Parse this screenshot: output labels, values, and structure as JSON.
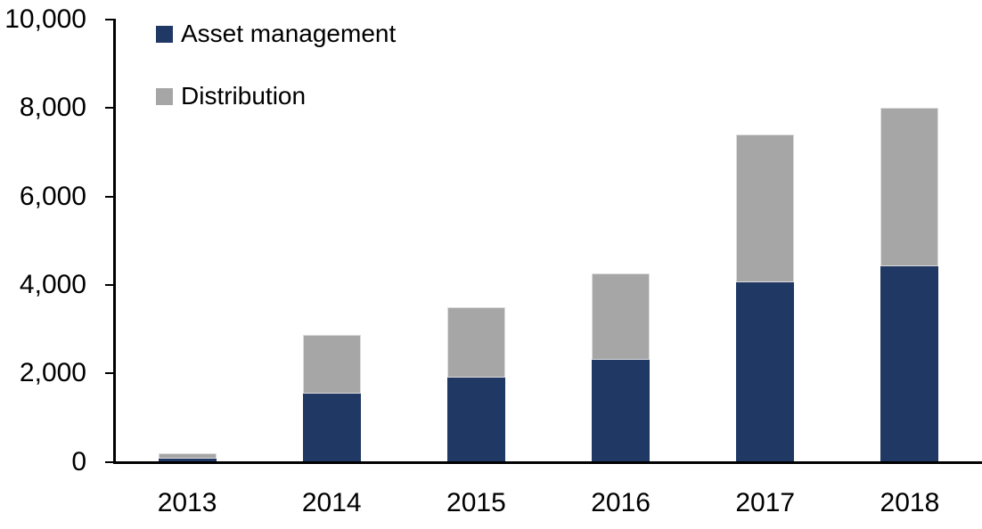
{
  "chart_data": {
    "type": "bar",
    "stacked": true,
    "title": "",
    "xlabel": "",
    "ylabel": "",
    "categories": [
      "2013",
      "2014",
      "2015",
      "2016",
      "2017",
      "2018"
    ],
    "series": [
      {
        "name": "Asset management",
        "color": "#203864",
        "values": [
          80,
          1550,
          1900,
          2300,
          4050,
          4430
        ]
      },
      {
        "name": "Distribution",
        "color": "#a6a6a6",
        "values": [
          120,
          1320,
          1600,
          1950,
          3350,
          3570
        ]
      }
    ],
    "totals": [
      200,
      2870,
      3500,
      4250,
      7400,
      8000
    ],
    "ylim": [
      0,
      10000
    ],
    "yticks": [
      0,
      2000,
      4000,
      6000,
      8000,
      10000
    ],
    "ytick_labels": [
      "0",
      "2,000",
      "4,000",
      "6,000",
      "8,000",
      "10,000"
    ],
    "grid": false,
    "legend_position": "top-left-inside",
    "axis_color": "#000000",
    "text_color": "#000000"
  }
}
